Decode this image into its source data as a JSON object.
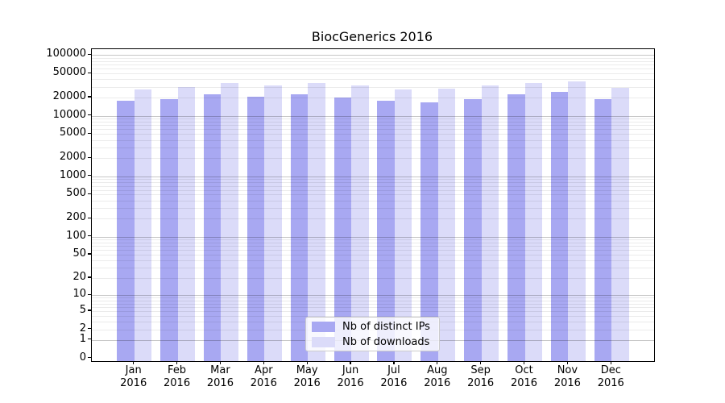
{
  "chart_data": {
    "type": "bar",
    "title": "BiocGenerics 2016",
    "months": [
      "Jan",
      "Feb",
      "Mar",
      "Apr",
      "May",
      "Jun",
      "Jul",
      "Aug",
      "Sep",
      "Oct",
      "Nov",
      "Dec"
    ],
    "year": "2016",
    "series": [
      {
        "name": "Nb of distinct IPs",
        "color": "#a8a8f2",
        "values": [
          17500,
          19100,
          22500,
          20800,
          22500,
          19900,
          17600,
          16900,
          19100,
          22500,
          24500,
          18700
        ]
      },
      {
        "name": "Nb of downloads",
        "color": "#dbdbf9",
        "values": [
          27600,
          29700,
          34600,
          31500,
          35300,
          31300,
          27600,
          28200,
          31300,
          34600,
          37500,
          28500
        ]
      }
    ],
    "yscale": "log1p",
    "yticks": [
      0,
      1,
      2,
      5,
      10,
      20,
      50,
      100,
      200,
      500,
      1000,
      2000,
      5000,
      10000,
      20000,
      50000,
      100000
    ],
    "ylim": [
      0,
      100000
    ],
    "grid": true,
    "legend": {
      "position": "lower center",
      "entries": [
        "Nb of distinct IPs",
        "Nb of downloads"
      ]
    },
    "colors": {
      "axis": "#000000",
      "grid_major": "#c7c7c7",
      "grid_minor": "#ebebeb",
      "background": "#ffffff"
    }
  }
}
